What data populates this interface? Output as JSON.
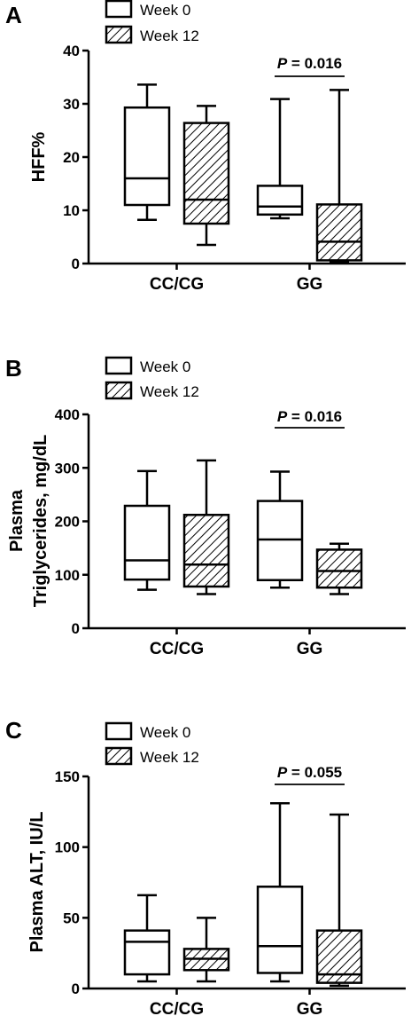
{
  "chart_data": [
    {
      "type": "boxplot",
      "panel_label": "A",
      "ylabel": "HFF%",
      "ylim": [
        0,
        40
      ],
      "yticks": [
        0,
        10,
        20,
        30,
        40
      ],
      "categories": [
        "CC/CG",
        "GG"
      ],
      "legend": [
        {
          "label": "Week 0",
          "pattern": "open"
        },
        {
          "label": "Week 12",
          "pattern": "hatched"
        }
      ],
      "series": [
        {
          "name": "Week 0",
          "pattern": "open",
          "boxes": [
            {
              "min": 8.2,
              "q1": 11,
              "median": 16,
              "q3": 29.3,
              "max": 33.6
            },
            {
              "min": 8.5,
              "q1": 9.2,
              "median": 10.7,
              "q3": 14.6,
              "max": 30.9
            }
          ]
        },
        {
          "name": "Week 12",
          "pattern": "hatched",
          "boxes": [
            {
              "min": 3.5,
              "q1": 7.5,
              "median": 12,
              "q3": 26.4,
              "max": 29.6
            },
            {
              "min": 0.3,
              "q1": 0.6,
              "median": 4.1,
              "q3": 11.1,
              "max": 32.6
            }
          ]
        }
      ],
      "annotations": [
        {
          "text": "P = 0.016",
          "category": "GG"
        }
      ]
    },
    {
      "type": "boxplot",
      "panel_label": "B",
      "ylabel_lines": [
        "Plasma",
        "Triglycerides, mg/dL"
      ],
      "ylim": [
        0,
        400
      ],
      "yticks": [
        0,
        100,
        200,
        300,
        400
      ],
      "categories": [
        "CC/CG",
        "GG"
      ],
      "legend": [
        {
          "label": "Week 0",
          "pattern": "open"
        },
        {
          "label": "Week 12",
          "pattern": "hatched"
        }
      ],
      "series": [
        {
          "name": "Week 0",
          "pattern": "open",
          "boxes": [
            {
              "min": 72,
              "q1": 91,
              "median": 127,
              "q3": 229,
              "max": 294
            },
            {
              "min": 76,
              "q1": 90,
              "median": 166,
              "q3": 238,
              "max": 293
            }
          ]
        },
        {
          "name": "Week 12",
          "pattern": "hatched",
          "boxes": [
            {
              "min": 64,
              "q1": 78,
              "median": 119,
              "q3": 212,
              "max": 314
            },
            {
              "min": 64,
              "q1": 76,
              "median": 107,
              "q3": 147,
              "max": 158
            }
          ]
        }
      ],
      "annotations": [
        {
          "text": "P = 0.016",
          "category": "GG"
        }
      ]
    },
    {
      "type": "boxplot",
      "panel_label": "C",
      "ylabel": "Plasma ALT, IU/L",
      "ylim": [
        0,
        150
      ],
      "yticks": [
        0,
        50,
        100,
        150
      ],
      "categories": [
        "CC/CG",
        "GG"
      ],
      "legend": [
        {
          "label": "Week 0",
          "pattern": "open"
        },
        {
          "label": "Week 12",
          "pattern": "hatched"
        }
      ],
      "series": [
        {
          "name": "Week 0",
          "pattern": "open",
          "boxes": [
            {
              "min": 5,
              "q1": 10,
              "median": 33,
              "q3": 41,
              "max": 66
            },
            {
              "min": 5,
              "q1": 11,
              "median": 30,
              "q3": 72,
              "max": 131
            }
          ]
        },
        {
          "name": "Week 12",
          "pattern": "hatched",
          "boxes": [
            {
              "min": 5,
              "q1": 13,
              "median": 21,
              "q3": 28,
              "max": 50
            },
            {
              "min": 2,
              "q1": 4,
              "median": 10,
              "q3": 41,
              "max": 123
            }
          ]
        }
      ],
      "annotations": [
        {
          "text": "P = 0.055",
          "category": "GG"
        }
      ]
    }
  ]
}
